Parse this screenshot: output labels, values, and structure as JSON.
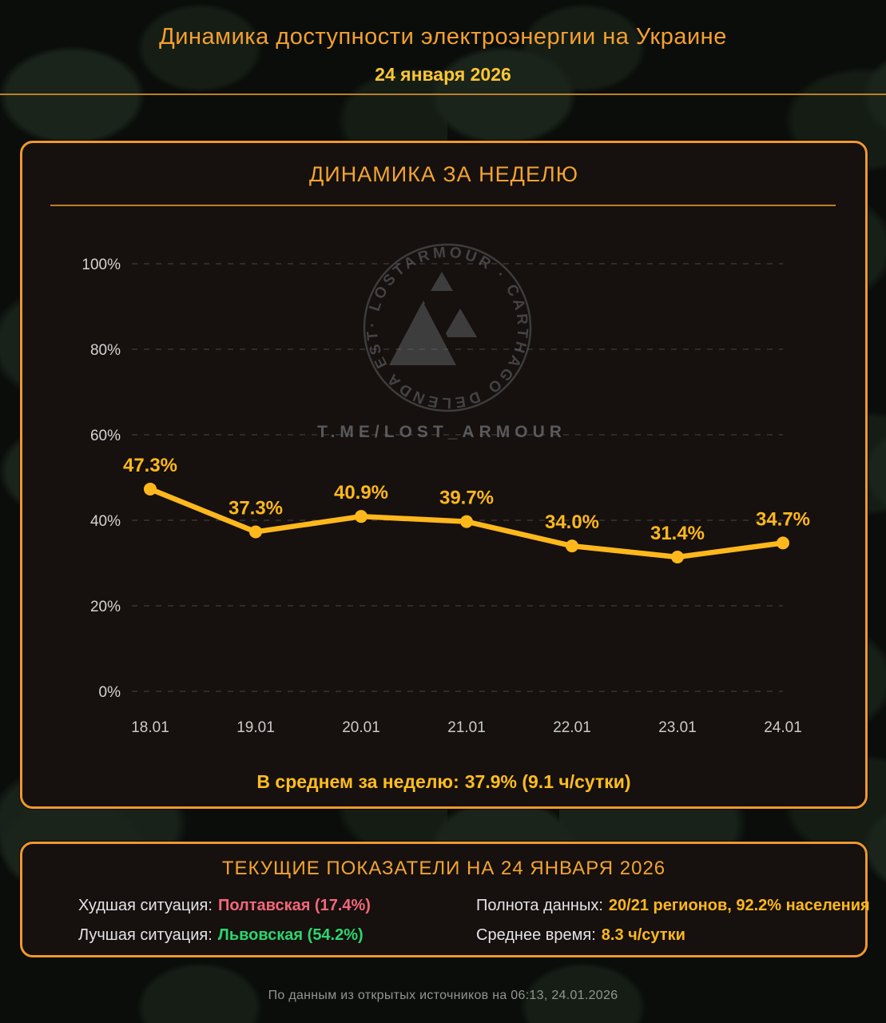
{
  "header": {
    "title": "Динамика доступности электроэнергии на Украине",
    "date": "24 января 2026"
  },
  "weekly_panel": {
    "title": "ДИНАМИКА ЗА НЕДЕЛЮ",
    "average_label": "В среднем за неделю:",
    "average_value": "37.9% (9.1 ч/сутки)"
  },
  "chart_data": {
    "type": "line",
    "title": "ДИНАМИКА ЗА НЕДЕЛЮ",
    "categories": [
      "18.01",
      "19.01",
      "20.01",
      "21.01",
      "22.01",
      "23.01",
      "24.01"
    ],
    "values": [
      47.3,
      37.3,
      40.9,
      39.7,
      34.0,
      31.4,
      34.7
    ],
    "point_labels": [
      "47.3%",
      "37.3%",
      "40.9%",
      "39.7%",
      "34.0%",
      "31.4%",
      "34.7%"
    ],
    "xlabel": "",
    "ylabel": "",
    "ylim": [
      0,
      100
    ],
    "y_ticks": [
      "0%",
      "20%",
      "40%",
      "60%",
      "80%",
      "100%"
    ],
    "grid": "horizontal-dashed",
    "legend": "none",
    "line_color": "#FFB81C",
    "annotation": "В среднем за неделю: 37.9% (9.1 ч/сутки)"
  },
  "watermark": {
    "ring_text": "· LOSTARMOUR ·  CARTHAGO  DELENDA EST",
    "link_text": "T.ME/LOST_ARMOUR"
  },
  "current_panel": {
    "title": "ТЕКУЩИЕ ПОКАЗАТЕЛИ НА 24 ЯНВАРЯ 2026",
    "rows": [
      {
        "label": "Худшая ситуация:",
        "value": "Полтавская (17.4%)",
        "color": "#F3677A"
      },
      {
        "label": "Полнота данных:",
        "value": "20/21 регионов, 92.2% населения",
        "color": "#FFB81C"
      },
      {
        "label": "Лучшая ситуация:",
        "value": "Львовская (54.2%)",
        "color": "#2BD66E"
      },
      {
        "label": "Среднее время:",
        "value": "8.3 ч/сутки",
        "color": "#FFB81C"
      }
    ]
  },
  "footer": {
    "source": "По данным из открытых источников на 06:13, 24.01.2026"
  },
  "colors": {
    "accent_border": "#F0982F",
    "panel_title": "#F2A431",
    "chart_line": "#FFB81C",
    "value_yellow": "#FFBE1F",
    "worst_red": "#F3677A",
    "best_green": "#2BD66E",
    "header_title": "#F5A02F",
    "header_date": "#FFC733",
    "grid_gray": "#9a9a9a"
  }
}
